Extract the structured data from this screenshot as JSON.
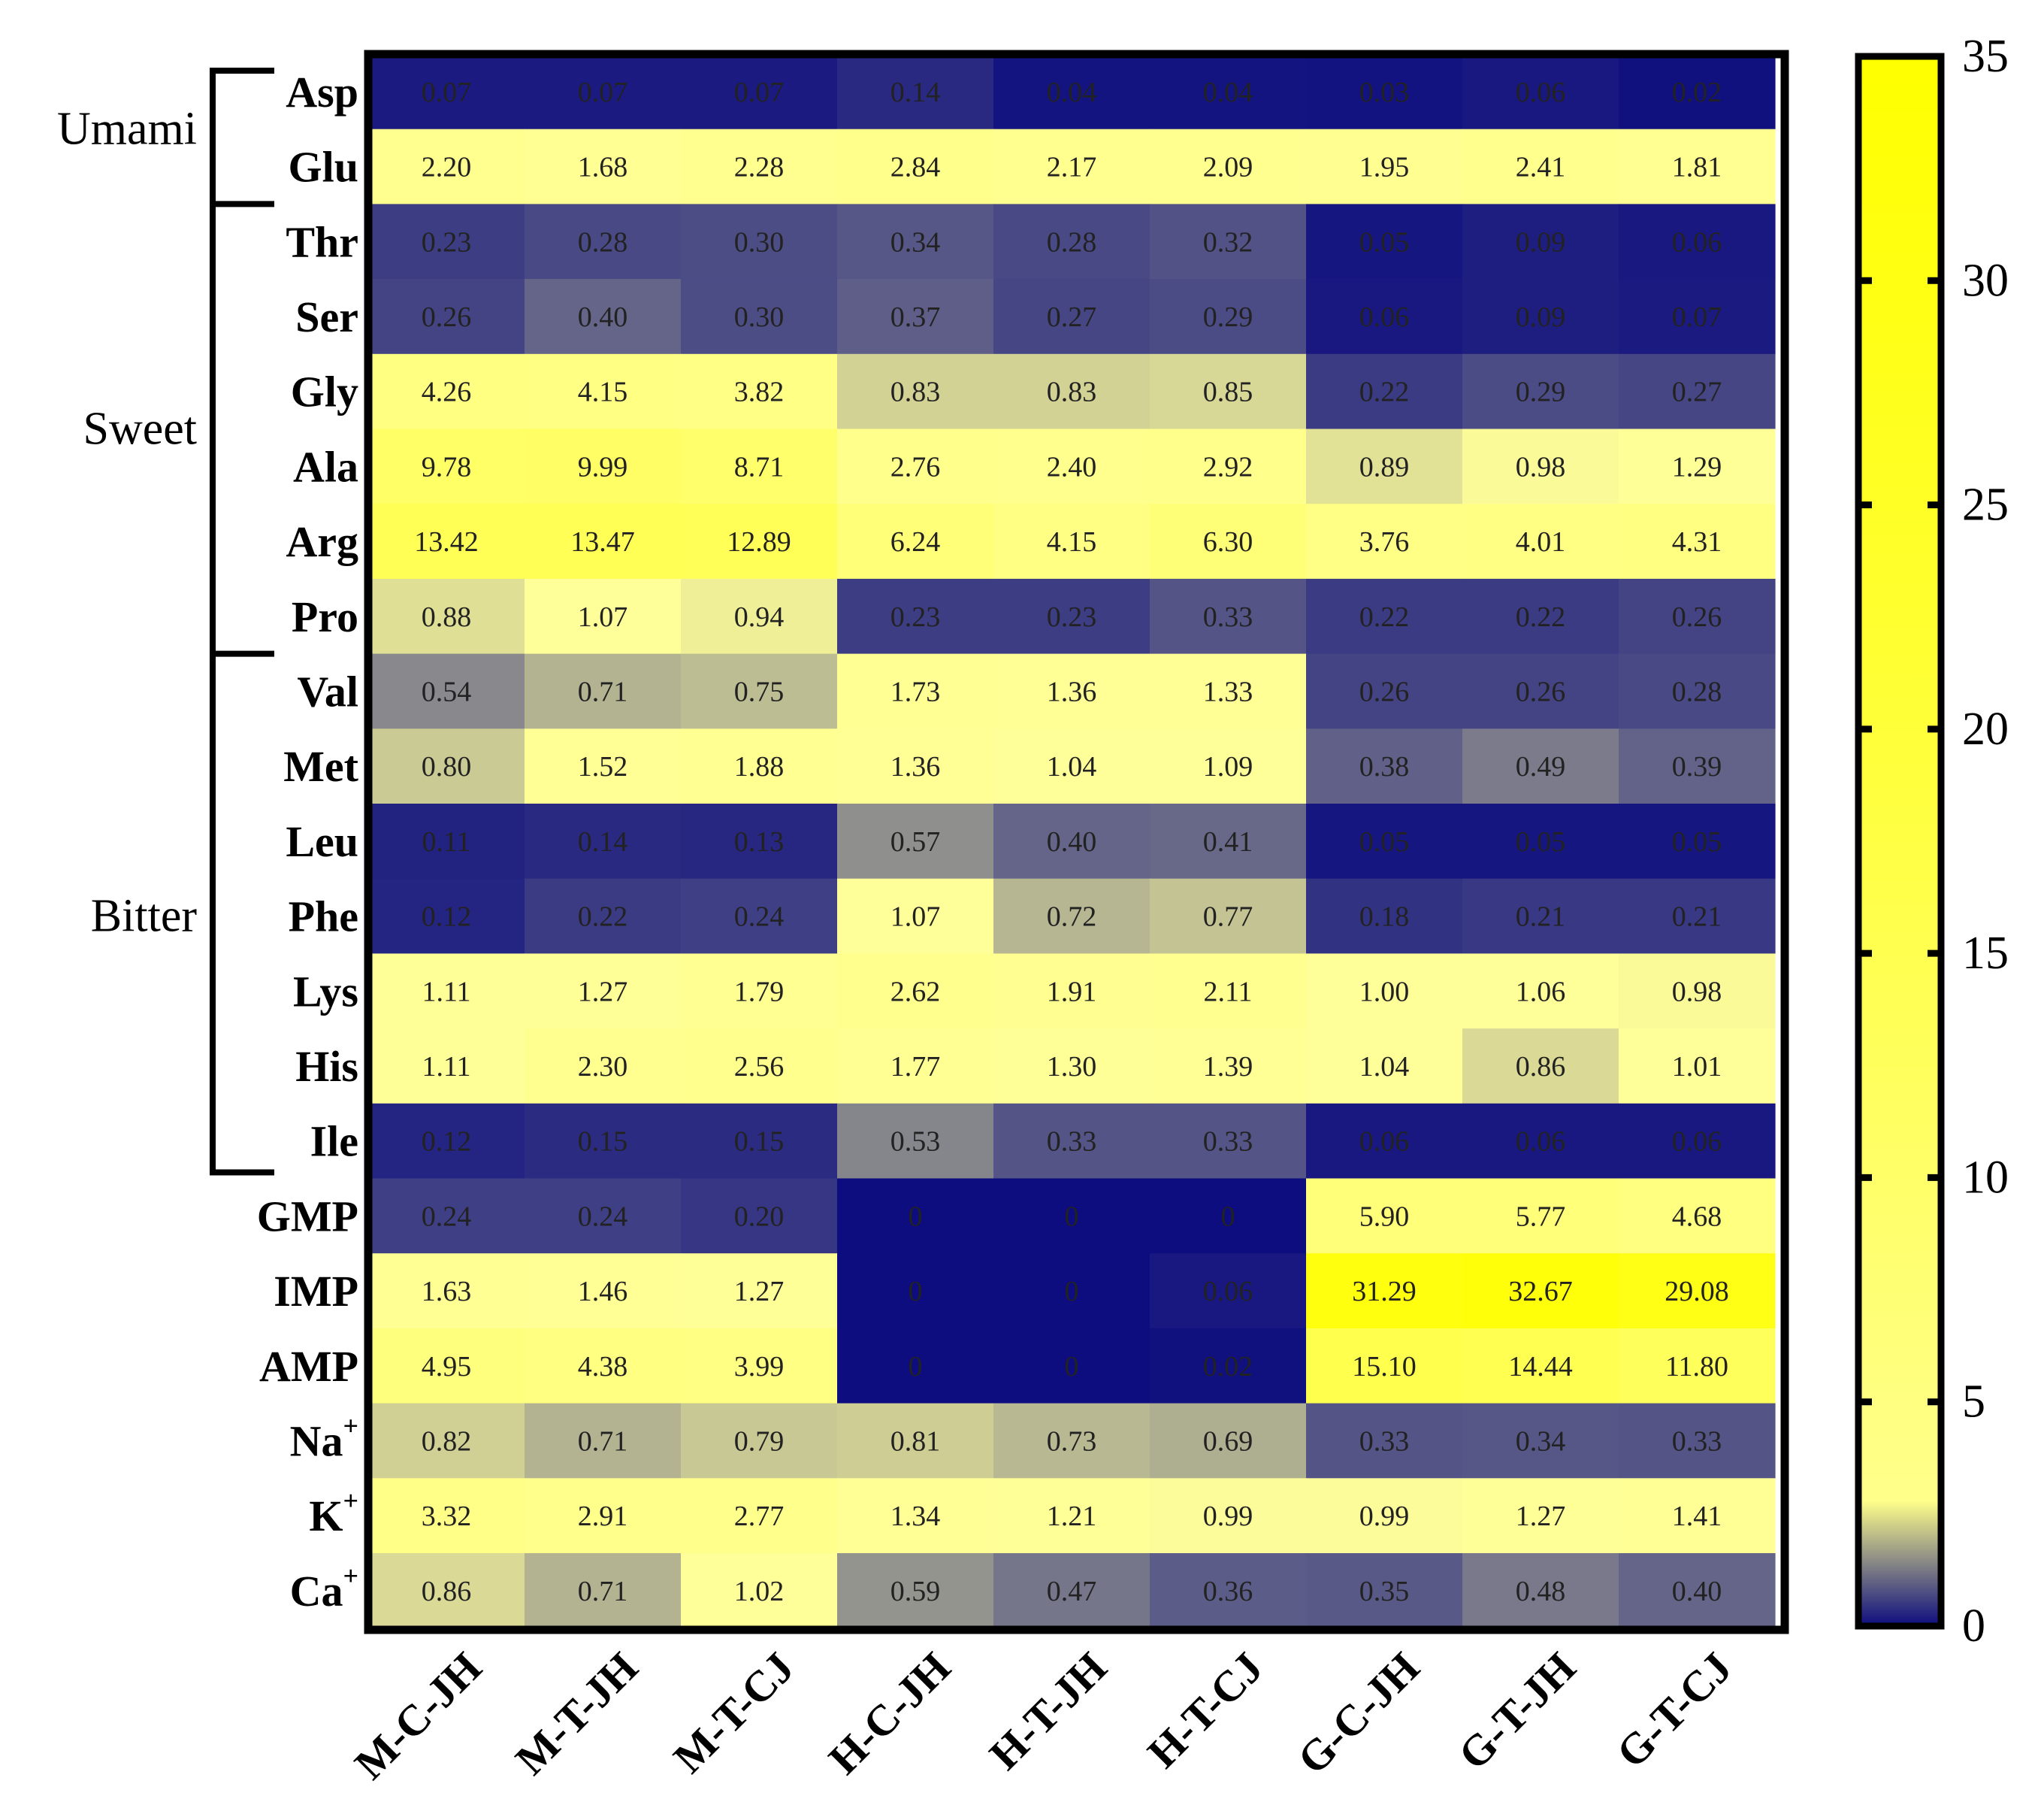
{
  "chart_data": {
    "type": "heatmap",
    "title": "",
    "columns": [
      "M-C-JH",
      "M-T-JH",
      "M-T-CJ",
      "H-C-JH",
      "H-T-JH",
      "H-T-CJ",
      "G-C-JH",
      "G-T-JH",
      "G-T-CJ"
    ],
    "rows": [
      {
        "label": "Asp",
        "sup": "",
        "values": [
          "0.07",
          "0.07",
          "0.07",
          "0.14",
          "0.04",
          "0.04",
          "0.03",
          "0.06",
          "0.02"
        ]
      },
      {
        "label": "Glu",
        "sup": "",
        "values": [
          "2.20",
          "1.68",
          "2.28",
          "2.84",
          "2.17",
          "2.09",
          "1.95",
          "2.41",
          "1.81"
        ]
      },
      {
        "label": "Thr",
        "sup": "",
        "values": [
          "0.23",
          "0.28",
          "0.30",
          "0.34",
          "0.28",
          "0.32",
          "0.05",
          "0.09",
          "0.06"
        ]
      },
      {
        "label": "Ser",
        "sup": "",
        "values": [
          "0.26",
          "0.40",
          "0.30",
          "0.37",
          "0.27",
          "0.29",
          "0.06",
          "0.09",
          "0.07"
        ]
      },
      {
        "label": "Gly",
        "sup": "",
        "values": [
          "4.26",
          "4.15",
          "3.82",
          "0.83",
          "0.83",
          "0.85",
          "0.22",
          "0.29",
          "0.27"
        ]
      },
      {
        "label": "Ala",
        "sup": "",
        "values": [
          "9.78",
          "9.99",
          "8.71",
          "2.76",
          "2.40",
          "2.92",
          "0.89",
          "0.98",
          "1.29"
        ]
      },
      {
        "label": "Arg",
        "sup": "",
        "values": [
          "13.42",
          "13.47",
          "12.89",
          "6.24",
          "4.15",
          "6.30",
          "3.76",
          "4.01",
          "4.31"
        ]
      },
      {
        "label": "Pro",
        "sup": "",
        "values": [
          "0.88",
          "1.07",
          "0.94",
          "0.23",
          "0.23",
          "0.33",
          "0.22",
          "0.22",
          "0.26"
        ]
      },
      {
        "label": "Val",
        "sup": "",
        "values": [
          "0.54",
          "0.71",
          "0.75",
          "1.73",
          "1.36",
          "1.33",
          "0.26",
          "0.26",
          "0.28"
        ]
      },
      {
        "label": "Met",
        "sup": "",
        "values": [
          "0.80",
          "1.52",
          "1.88",
          "1.36",
          "1.04",
          "1.09",
          "0.38",
          "0.49",
          "0.39"
        ]
      },
      {
        "label": "Leu",
        "sup": "",
        "values": [
          "0.11",
          "0.14",
          "0.13",
          "0.57",
          "0.40",
          "0.41",
          "0.05",
          "0.05",
          "0.05"
        ]
      },
      {
        "label": "Phe",
        "sup": "",
        "values": [
          "0.12",
          "0.22",
          "0.24",
          "1.07",
          "0.72",
          "0.77",
          "0.18",
          "0.21",
          "0.21"
        ]
      },
      {
        "label": "Lys",
        "sup": "",
        "values": [
          "1.11",
          "1.27",
          "1.79",
          "2.62",
          "1.91",
          "2.11",
          "1.00",
          "1.06",
          "0.98"
        ]
      },
      {
        "label": "His",
        "sup": "",
        "values": [
          "1.11",
          "2.30",
          "2.56",
          "1.77",
          "1.30",
          "1.39",
          "1.04",
          "0.86",
          "1.01"
        ]
      },
      {
        "label": "Ile",
        "sup": "",
        "values": [
          "0.12",
          "0.15",
          "0.15",
          "0.53",
          "0.33",
          "0.33",
          "0.06",
          "0.06",
          "0.06"
        ]
      },
      {
        "label": "GMP",
        "sup": "",
        "values": [
          "0.24",
          "0.24",
          "0.20",
          "0",
          "0",
          "0",
          "5.90",
          "5.77",
          "4.68"
        ]
      },
      {
        "label": "IMP",
        "sup": "",
        "values": [
          "1.63",
          "1.46",
          "1.27",
          "0",
          "0",
          "0.06",
          "31.29",
          "32.67",
          "29.08"
        ]
      },
      {
        "label": "AMP",
        "sup": "",
        "values": [
          "4.95",
          "4.38",
          "3.99",
          "0",
          "0",
          "0.02",
          "15.10",
          "14.44",
          "11.80"
        ]
      },
      {
        "label": "Na",
        "sup": "+",
        "values": [
          "0.82",
          "0.71",
          "0.79",
          "0.81",
          "0.73",
          "0.69",
          "0.33",
          "0.34",
          "0.33"
        ]
      },
      {
        "label": "K",
        "sup": "+",
        "values": [
          "3.32",
          "2.91",
          "2.77",
          "1.34",
          "1.21",
          "0.99",
          "0.99",
          "1.27",
          "1.41"
        ]
      },
      {
        "label": "Ca",
        "sup": "+",
        "values": [
          "0.86",
          "0.71",
          "1.02",
          "0.59",
          "0.47",
          "0.36",
          "0.35",
          "0.48",
          "0.40"
        ]
      }
    ],
    "groups": [
      {
        "label": "Umami",
        "start": 0,
        "end": 1
      },
      {
        "label": "Sweet",
        "start": 2,
        "end": 7
      },
      {
        "label": "Bitter",
        "start": 8,
        "end": 14
      }
    ],
    "colorbar": {
      "min": 0,
      "max": 35,
      "ticks": [
        "0",
        "5",
        "10",
        "15",
        "20",
        "25",
        "30",
        "35"
      ],
      "colors": {
        "low": "#0d0d7f",
        "mid": "#ffff9a",
        "high": "#ffff00"
      }
    }
  }
}
